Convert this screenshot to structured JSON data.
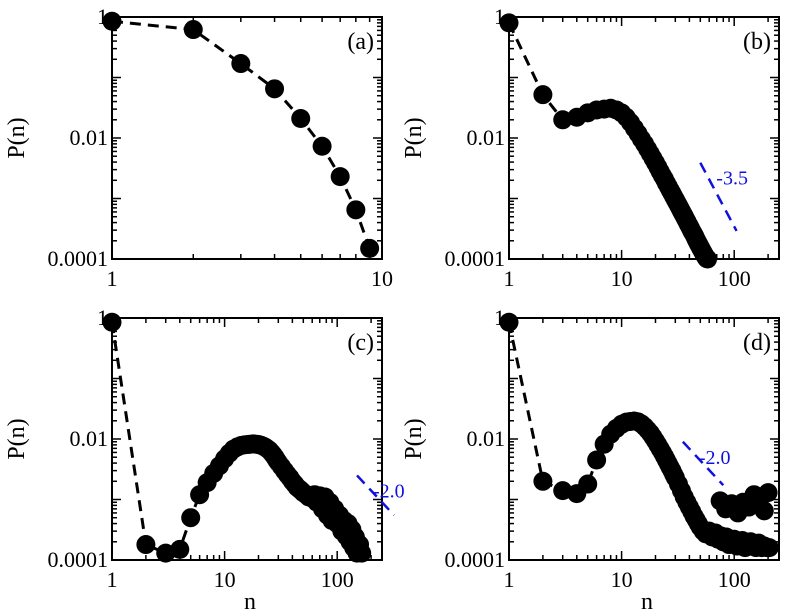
{
  "figure": {
    "ylabel": "P(n)",
    "xlabel": "n"
  },
  "colors": {
    "points": "#000000",
    "curve": "#000000",
    "slope_line": "#1010e0"
  },
  "chart_data": [
    {
      "panel": "(a)",
      "type": "scatter",
      "xscale": "log",
      "yscale": "log",
      "xlim": [
        1,
        10
      ],
      "ylim": [
        0.0001,
        1
      ],
      "xticks": [
        1,
        10
      ],
      "xtick_labels": [
        "1",
        "10"
      ],
      "yticks": [
        0.0001,
        0.01,
        1
      ],
      "ytick_labels": [
        "0.0001",
        "0.01",
        "1"
      ],
      "ylabel": "P(n)",
      "xlabel": "",
      "x": [
        1,
        2,
        3,
        4,
        5,
        6,
        7,
        8,
        9
      ],
      "y": [
        0.85,
        0.62,
        0.17,
        0.065,
        0.021,
        0.0073,
        0.0023,
        0.00065,
        0.00015
      ],
      "slope": null
    },
    {
      "panel": "(b)",
      "type": "scatter",
      "xscale": "log",
      "yscale": "log",
      "xlim": [
        1,
        250
      ],
      "ylim": [
        0.0001,
        1
      ],
      "xticks": [
        1,
        10,
        100
      ],
      "xtick_labels": [
        "1",
        "10",
        "100"
      ],
      "yticks": [
        0.0001,
        0.01,
        1
      ],
      "ytick_labels": [
        "0.0001",
        "0.01",
        "1"
      ],
      "ylabel": "P(n)",
      "xlabel": "",
      "x": [
        1,
        2,
        3,
        4,
        5,
        6,
        7,
        8,
        9,
        10,
        11,
        12,
        13,
        14,
        15,
        16,
        17,
        18,
        19,
        20,
        21,
        22,
        23,
        24,
        25,
        26,
        27,
        28,
        29,
        30,
        31,
        32,
        33,
        34,
        35,
        36,
        37,
        38,
        39,
        40,
        41,
        42,
        43,
        44,
        45,
        46,
        47,
        48,
        49,
        50,
        51,
        52,
        53,
        54,
        55,
        56,
        57,
        58
      ],
      "y": [
        0.8,
        0.052,
        0.02,
        0.022,
        0.026,
        0.029,
        0.03,
        0.031,
        0.029,
        0.026,
        0.022,
        0.018,
        0.0145,
        0.0118,
        0.0096,
        0.008,
        0.0066,
        0.0055,
        0.0046,
        0.0039,
        0.0033,
        0.0028,
        0.0024,
        0.0021,
        0.0018,
        0.00158,
        0.00138,
        0.00122,
        0.00108,
        0.00096,
        0.00086,
        0.00077,
        0.00069,
        0.00062,
        0.00056,
        0.00051,
        0.00046,
        0.00042,
        0.00038,
        0.00035,
        0.00032,
        0.00029,
        0.00027,
        0.00025,
        0.00023,
        0.00021,
        0.000195,
        0.00018,
        0.000168,
        0.000156,
        0.000146,
        0.000136,
        0.000128,
        0.00012,
        0.000113,
        0.000107,
        0.000102,
        0.0001
      ],
      "slope": {
        "label": "-3.5",
        "exponent": -3.5,
        "x_range": [
          50,
          105
        ],
        "y_at_start": 0.0039
      }
    },
    {
      "panel": "(c)",
      "type": "scatter",
      "xscale": "log",
      "yscale": "log",
      "xlim": [
        1,
        250
      ],
      "ylim": [
        0.0001,
        1
      ],
      "xticks": [
        1,
        10,
        100
      ],
      "xtick_labels": [
        "1",
        "10",
        "100"
      ],
      "yticks": [
        0.0001,
        0.01,
        1
      ],
      "ytick_labels": [
        "0.0001",
        "0.01",
        "1"
      ],
      "ylabel": "P(n)",
      "xlabel": "n",
      "x": [
        1,
        2,
        3,
        4,
        5,
        6,
        7,
        8,
        9,
        10,
        11,
        12,
        13,
        14,
        15,
        16,
        17,
        18,
        19,
        20,
        21,
        22,
        23,
        24,
        25,
        26,
        27,
        28,
        29,
        30,
        32,
        34,
        36,
        38,
        40,
        42,
        44,
        46,
        48,
        50,
        53,
        56,
        60,
        63,
        66,
        70,
        74,
        78,
        82,
        86,
        90,
        95,
        100,
        105,
        110,
        115,
        120,
        125,
        130,
        135,
        140,
        145,
        150,
        158,
        165
      ],
      "y": [
        0.85,
        0.00018,
        0.00013,
        0.00015,
        0.0005,
        0.0012,
        0.0019,
        0.0027,
        0.0036,
        0.0047,
        0.0058,
        0.0068,
        0.0074,
        0.0078,
        0.008,
        0.0081,
        0.0082,
        0.0083,
        0.0082,
        0.0081,
        0.0079,
        0.0076,
        0.0073,
        0.0069,
        0.0065,
        0.006,
        0.0055,
        0.005,
        0.0045,
        0.0041,
        0.0035,
        0.003,
        0.0026,
        0.0023,
        0.002,
        0.0018,
        0.0016,
        0.0015,
        0.0014,
        0.0013,
        0.0012,
        0.0011,
        0.00105,
        0.0012,
        0.0009,
        0.00115,
        0.0007,
        0.0011,
        0.00055,
        0.0009,
        0.00045,
        0.0007,
        0.0004,
        0.00055,
        0.0003,
        0.00045,
        0.00025,
        0.0004,
        0.0002,
        0.00032,
        0.00016,
        0.00024,
        0.00013,
        0.00018,
        0.00013
      ],
      "slope": {
        "label": "-2.0",
        "exponent": -2.0,
        "x_range": [
          150,
          320
        ],
        "y_at_start": 0.0025
      }
    },
    {
      "panel": "(d)",
      "type": "scatter",
      "xscale": "log",
      "yscale": "log",
      "xlim": [
        1,
        250
      ],
      "ylim": [
        0.0001,
        1
      ],
      "xticks": [
        1,
        10,
        100
      ],
      "xtick_labels": [
        "1",
        "10",
        "100"
      ],
      "yticks": [
        0.0001,
        0.01,
        1
      ],
      "ytick_labels": [
        "0.0001",
        "0.01",
        "1"
      ],
      "ylabel": "P(n)",
      "xlabel": "n",
      "x": [
        1,
        2,
        3,
        4,
        5,
        6,
        7,
        8,
        9,
        10,
        11,
        12,
        13,
        14,
        15,
        16,
        17,
        18,
        19,
        20,
        21,
        22,
        23,
        24,
        25,
        26,
        27,
        28,
        29,
        30,
        32,
        34,
        36,
        38,
        40,
        42,
        44,
        46,
        48,
        50,
        53,
        56,
        60,
        64,
        68,
        72,
        76,
        80,
        85,
        90,
        95,
        100,
        106,
        112,
        118,
        125,
        132,
        140,
        148,
        156,
        165,
        175,
        185,
        195,
        205
      ],
      "y": [
        0.85,
        0.002,
        0.0014,
        0.00125,
        0.0018,
        0.0045,
        0.0082,
        0.012,
        0.015,
        0.0175,
        0.019,
        0.0195,
        0.0198,
        0.0192,
        0.0178,
        0.016,
        0.0142,
        0.0125,
        0.0108,
        0.0093,
        0.008,
        0.0069,
        0.006,
        0.0052,
        0.0045,
        0.0039,
        0.0034,
        0.003,
        0.0026,
        0.0023,
        0.0018,
        0.0014,
        0.0011,
        0.0009,
        0.00075,
        0.00063,
        0.00053,
        0.00046,
        0.0004,
        0.00035,
        0.0003,
        0.00027,
        0.0003,
        0.00024,
        0.00028,
        0.00022,
        0.00025,
        0.0002,
        0.00024,
        0.00018,
        0.0002,
        0.00022,
        0.00017,
        0.00019,
        0.00021,
        0.00016,
        0.00019,
        0.0002,
        0.00017,
        0.00016,
        0.00019,
        0.00016,
        0.00017,
        0.00016,
        0.00016
      ],
      "y_high_scatter": {
        "x": [
          75,
          84,
          95,
          108,
          120,
          135,
          150,
          168,
          185,
          200
        ],
        "y": [
          0.00095,
          0.0007,
          0.00085,
          0.0006,
          0.0009,
          0.00075,
          0.0012,
          0.0008,
          0.00065,
          0.0013
        ]
      },
      "slope": {
        "label": "-2.0",
        "exponent": -2.0,
        "x_range": [
          35,
          80
        ],
        "y_at_start": 0.009
      }
    }
  ]
}
